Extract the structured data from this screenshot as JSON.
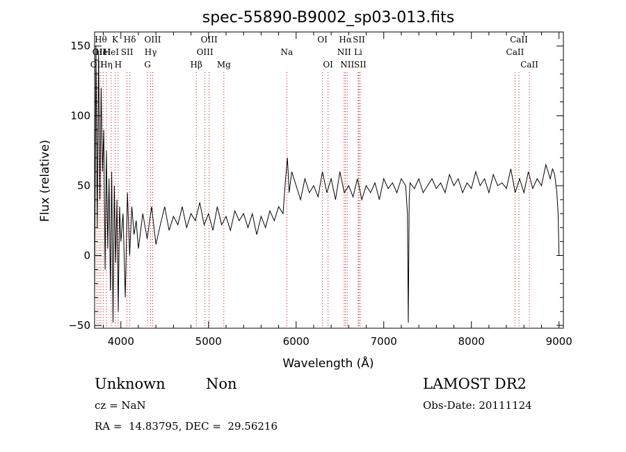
{
  "chart_data": {
    "type": "line",
    "title": "spec-55890-B9002_sp03-013.fits",
    "xlabel": "Wavelength (Å)",
    "ylabel": "Flux (relative)",
    "xlim": [
      3700,
      9050
    ],
    "ylim": [
      -52,
      160
    ],
    "x_ticks": [
      4000,
      5000,
      6000,
      7000,
      8000,
      9000
    ],
    "y_ticks": [
      -50,
      0,
      50,
      100,
      150
    ],
    "grid": false,
    "line_color": "#000000",
    "marker_line_color": "#cc0000",
    "series": [
      {
        "x": [
          3700,
          3715,
          3730,
          3745,
          3760,
          3775,
          3790,
          3805,
          3820,
          3835,
          3850,
          3865,
          3880,
          3895,
          3910,
          3925,
          3940,
          3955,
          3970,
          3985,
          4000,
          4025,
          4050,
          4075,
          4100,
          4125,
          4150,
          4175,
          4200,
          4250,
          4300,
          4350,
          4400,
          4450,
          4500,
          4550,
          4600,
          4650,
          4700,
          4750,
          4800,
          4850,
          4900,
          4950,
          5000,
          5050,
          5100,
          5150,
          5200,
          5250,
          5300,
          5350,
          5400,
          5450,
          5500,
          5550,
          5600,
          5650,
          5700,
          5750,
          5800,
          5850,
          5880,
          5900,
          5920,
          5950,
          6000,
          6050,
          6100,
          6150,
          6200,
          6250,
          6300,
          6350,
          6400,
          6450,
          6500,
          6550,
          6600,
          6650,
          6700,
          6750,
          6800,
          6850,
          6900,
          6950,
          7000,
          7050,
          7100,
          7150,
          7200,
          7250,
          7270,
          7280,
          7290,
          7300,
          7350,
          7400,
          7450,
          7500,
          7550,
          7600,
          7650,
          7700,
          7750,
          7800,
          7850,
          7900,
          7950,
          8000,
          8050,
          8100,
          8150,
          8200,
          8250,
          8300,
          8350,
          8400,
          8450,
          8500,
          8550,
          8600,
          8650,
          8700,
          8750,
          8800,
          8850,
          8900,
          8925,
          8950,
          8975,
          8990,
          9000
        ],
        "y": [
          -30,
          150,
          20,
          145,
          40,
          120,
          60,
          90,
          -10,
          75,
          5,
          55,
          -25,
          60,
          -48,
          50,
          -5,
          40,
          -40,
          35,
          10,
          30,
          -30,
          45,
          0,
          35,
          15,
          25,
          5,
          30,
          12,
          35,
          8,
          22,
          35,
          18,
          28,
          22,
          35,
          20,
          30,
          25,
          38,
          22,
          30,
          18,
          35,
          22,
          28,
          18,
          32,
          25,
          30,
          20,
          30,
          15,
          28,
          20,
          32,
          25,
          35,
          30,
          55,
          70,
          45,
          60,
          50,
          40,
          55,
          45,
          50,
          42,
          60,
          45,
          55,
          40,
          60,
          45,
          50,
          42,
          55,
          40,
          50,
          45,
          52,
          40,
          55,
          48,
          52,
          45,
          55,
          50,
          30,
          -48,
          40,
          52,
          48,
          55,
          45,
          50,
          55,
          48,
          52,
          45,
          58,
          50,
          55,
          45,
          52,
          48,
          60,
          50,
          55,
          45,
          58,
          50,
          52,
          48,
          62,
          45,
          55,
          45,
          60,
          48,
          55,
          50,
          65,
          55,
          62,
          58,
          45,
          30,
          0
        ]
      }
    ],
    "line_markers": [
      {
        "x": 3727,
        "label": "OII",
        "row": 2
      },
      {
        "x": 3750,
        "label": "OII",
        "row": 1
      },
      {
        "x": 3771,
        "label": "Hθ",
        "row": 0
      },
      {
        "x": 3798,
        "label": "HeI",
        "row": 1
      },
      {
        "x": 3835,
        "label": "Hη",
        "row": 2
      },
      {
        "x": 3889,
        "label": "HeI",
        "row": 1
      },
      {
        "x": 3934,
        "label": "K",
        "row": 0
      },
      {
        "x": 3969,
        "label": "H",
        "row": 2
      },
      {
        "x": 4070,
        "label": "SII",
        "row": 1
      },
      {
        "x": 4102,
        "label": "Hδ",
        "row": 0
      },
      {
        "x": 4304,
        "label": "G",
        "row": 2
      },
      {
        "x": 4340,
        "label": "Hγ",
        "row": 1
      },
      {
        "x": 4363,
        "label": "OIII",
        "row": 0
      },
      {
        "x": 4861,
        "label": "Hβ",
        "row": 2
      },
      {
        "x": 4959,
        "label": "OIII",
        "row": 1
      },
      {
        "x": 5007,
        "label": "OIII",
        "row": 0
      },
      {
        "x": 5175,
        "label": "Mg",
        "row": 2
      },
      {
        "x": 5893,
        "label": "Na",
        "row": 1
      },
      {
        "x": 6300,
        "label": "OI",
        "row": 0
      },
      {
        "x": 6364,
        "label": "OI",
        "row": 2
      },
      {
        "x": 6548,
        "label": "NII",
        "row": 1
      },
      {
        "x": 6563,
        "label": "Hα",
        "row": 0
      },
      {
        "x": 6583,
        "label": "NII",
        "row": 2
      },
      {
        "x": 6708,
        "label": "Li",
        "row": 1
      },
      {
        "x": 6716,
        "label": "SII",
        "row": 0
      },
      {
        "x": 6731,
        "label": "SII",
        "row": 2
      },
      {
        "x": 8498,
        "label": "CaII",
        "row": 1
      },
      {
        "x": 8542,
        "label": "CaII",
        "row": 0
      },
      {
        "x": 8662,
        "label": "CaII",
        "row": 2
      }
    ]
  },
  "footer": {
    "object_class": "Unknown",
    "subclass": "Non",
    "survey": "LAMOST DR2",
    "redshift": "cz = NaN",
    "obs_date": "Obs-Date: 20111124",
    "coords": "RA =  14.83795, DEC =  29.56216"
  }
}
